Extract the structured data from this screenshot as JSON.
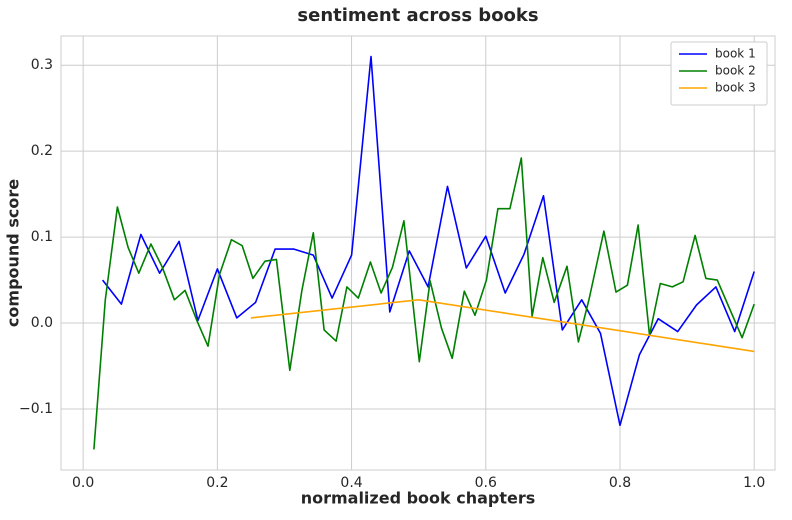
{
  "chart_data": {
    "type": "line",
    "title": "sentiment across books",
    "x_label": "normalized book chapters",
    "y_label": "compound score",
    "xlim": [
      -0.033,
      1.031
    ],
    "ylim": [
      -0.171,
      0.334
    ],
    "xticks": [
      {
        "value": 0,
        "label": "0.0"
      },
      0.2,
      0.4,
      0.6,
      0.8,
      {
        "value": 1,
        "label": "1.0"
      }
    ],
    "yticks": [
      {
        "value": -0.1,
        "label": "−0.1"
      },
      {
        "value": 0,
        "label": "0.0"
      },
      0.1,
      0.2,
      0.3
    ],
    "grid": true,
    "legend": "upper right",
    "series": [
      {
        "name": "book 1",
        "color": "#0000ff",
        "x": [
          0.029,
          0.057,
          0.086,
          0.114,
          0.143,
          0.171,
          0.2,
          0.229,
          0.257,
          0.286,
          0.314,
          0.343,
          0.371,
          0.4,
          0.429,
          0.457,
          0.486,
          0.514,
          0.543,
          0.571,
          0.6,
          0.629,
          0.657,
          0.686,
          0.714,
          0.743,
          0.771,
          0.8,
          0.829,
          0.857,
          0.886,
          0.914,
          0.943,
          0.971,
          1.0
        ],
        "values": [
          0.05,
          0.022,
          0.103,
          0.058,
          0.095,
          0.003,
          0.063,
          0.006,
          0.024,
          0.086,
          0.086,
          0.079,
          0.029,
          0.079,
          0.31,
          0.013,
          0.084,
          0.042,
          0.159,
          0.064,
          0.101,
          0.035,
          0.08,
          0.148,
          -0.008,
          0.027,
          -0.012,
          -0.119,
          -0.037,
          0.005,
          -0.01,
          0.021,
          0.042,
          -0.01,
          0.06
        ]
      },
      {
        "name": "book 2",
        "color": "#008000",
        "x": [
          0.016,
          0.033,
          0.051,
          0.067,
          0.083,
          0.101,
          0.118,
          0.136,
          0.152,
          0.17,
          0.186,
          0.203,
          0.221,
          0.237,
          0.253,
          0.271,
          0.288,
          0.308,
          0.326,
          0.343,
          0.359,
          0.377,
          0.393,
          0.41,
          0.428,
          0.444,
          0.461,
          0.478,
          0.501,
          0.517,
          0.534,
          0.55,
          0.568,
          0.584,
          0.601,
          0.618,
          0.636,
          0.653,
          0.669,
          0.685,
          0.702,
          0.721,
          0.738,
          0.754,
          0.776,
          0.794,
          0.811,
          0.827,
          0.844,
          0.86,
          0.878,
          0.894,
          0.912,
          0.928,
          0.945,
          0.961,
          0.982,
          1.0
        ],
        "values": [
          -0.147,
          0.027,
          0.135,
          0.088,
          0.058,
          0.092,
          0.065,
          0.027,
          0.038,
          0.002,
          -0.027,
          0.056,
          0.097,
          0.09,
          0.052,
          0.072,
          0.074,
          -0.055,
          0.038,
          0.105,
          -0.008,
          -0.021,
          0.042,
          0.029,
          0.071,
          0.035,
          0.065,
          0.119,
          -0.045,
          0.049,
          -0.006,
          -0.041,
          0.037,
          0.009,
          0.05,
          0.133,
          0.133,
          0.192,
          0.008,
          0.076,
          0.024,
          0.066,
          -0.022,
          0.028,
          0.107,
          0.036,
          0.044,
          0.114,
          -0.014,
          0.046,
          0.042,
          0.048,
          0.102,
          0.052,
          0.05,
          0.021,
          -0.017,
          0.022
        ]
      },
      {
        "name": "book 3",
        "color": "#ffa500",
        "x": [
          0.25,
          0.5,
          0.75,
          1.0
        ],
        "values": [
          0.006,
          0.027,
          -0.003,
          -0.033
        ]
      }
    ]
  }
}
